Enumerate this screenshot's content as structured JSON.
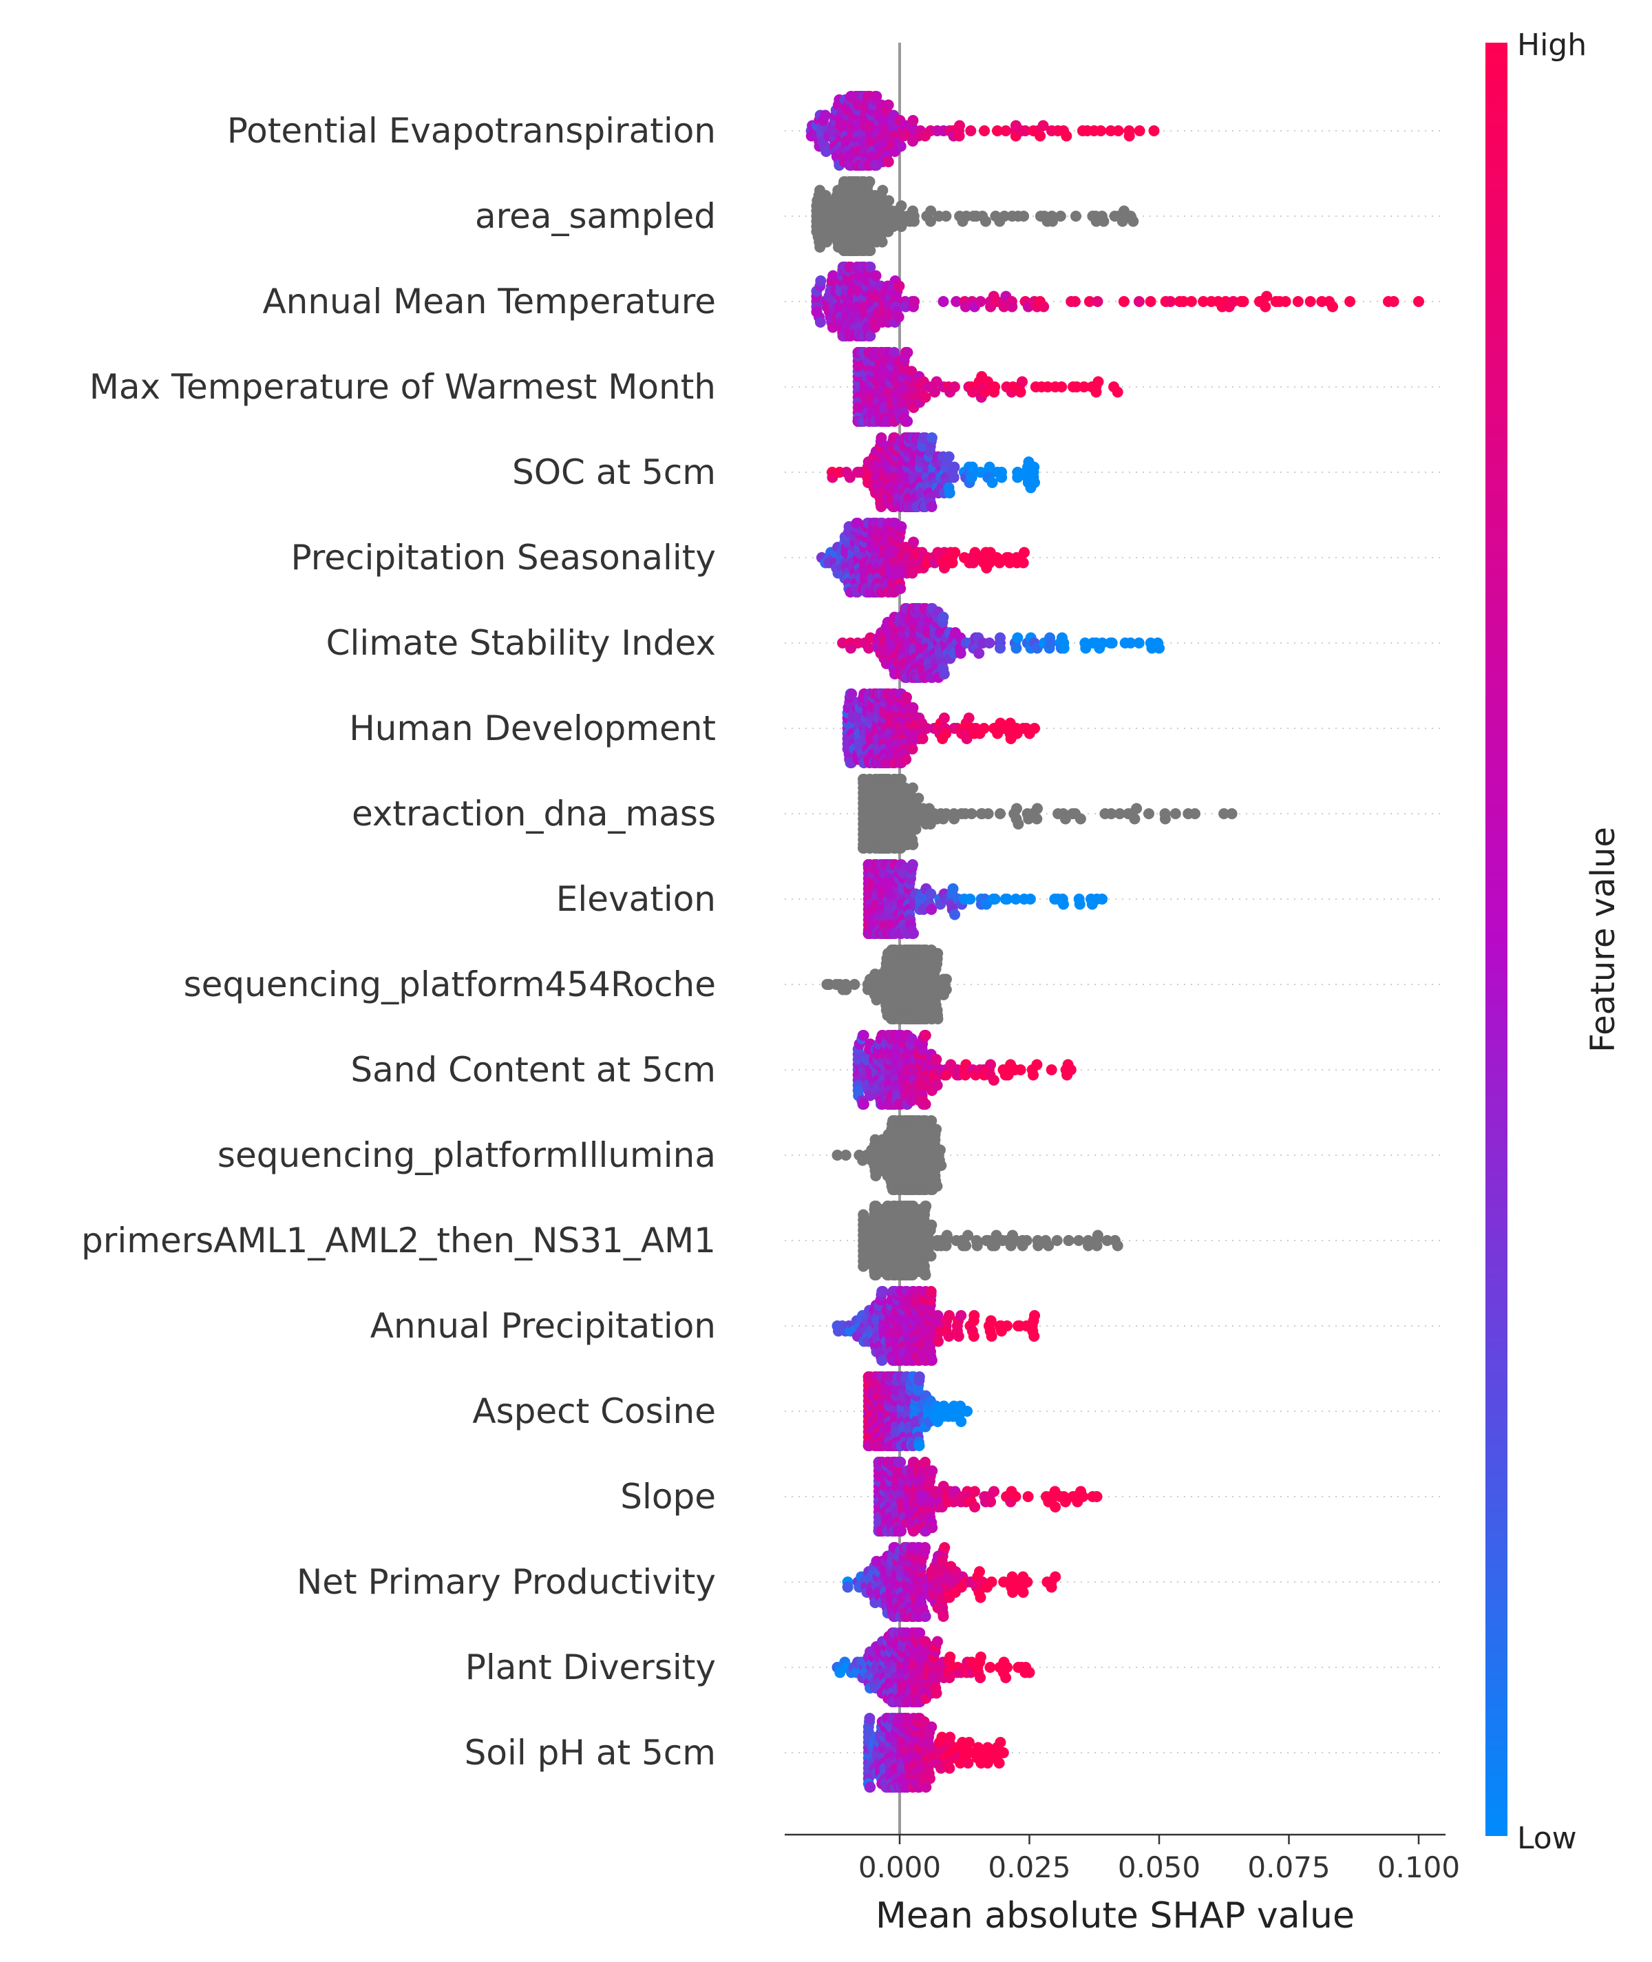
{
  "chart_data": {
    "type": "scatter",
    "subtype": "shap-beeswarm",
    "xlabel": "Mean absolute SHAP value",
    "xlim": [
      -0.022,
      0.105
    ],
    "xticks": [
      0.0,
      0.025,
      0.05,
      0.075,
      0.1
    ],
    "xtick_labels": [
      "0.000",
      "0.025",
      "0.050",
      "0.075",
      "0.100"
    ],
    "colorbar": {
      "title": "Feature value",
      "high_label": "High",
      "low_label": "Low",
      "low_color": "#008bfb",
      "high_color": "#ff0052"
    },
    "neutral_color": "#777777",
    "features": [
      {
        "name": "Potential Evapotranspiration",
        "colored": true,
        "min": -0.017,
        "max": 0.049,
        "center": -0.008,
        "spread": 0.026,
        "high_side": "right"
      },
      {
        "name": "area_sampled",
        "colored": false,
        "min": -0.016,
        "max": 0.045,
        "center": -0.009,
        "spread": 0.024,
        "high_side": "right"
      },
      {
        "name": "Annual Mean Temperature",
        "colored": true,
        "min": -0.016,
        "max": 0.1,
        "center": -0.008,
        "spread": 0.026,
        "high_side": "right"
      },
      {
        "name": "Max Temperature of Warmest Month",
        "colored": true,
        "min": -0.008,
        "max": 0.042,
        "center": -0.005,
        "spread": 0.026,
        "high_side": "right"
      },
      {
        "name": "SOC at 5cm",
        "colored": true,
        "min": -0.013,
        "max": 0.026,
        "center": 0.001,
        "spread": 0.026,
        "high_side": "left"
      },
      {
        "name": "Precipitation Seasonality",
        "colored": true,
        "min": -0.015,
        "max": 0.024,
        "center": -0.005,
        "spread": 0.026,
        "high_side": "right"
      },
      {
        "name": "Climate Stability Index",
        "colored": true,
        "min": -0.011,
        "max": 0.05,
        "center": 0.003,
        "spread": 0.026,
        "high_side": "left"
      },
      {
        "name": "Human Development",
        "colored": true,
        "min": -0.01,
        "max": 0.026,
        "center": -0.004,
        "spread": 0.026,
        "high_side": "right"
      },
      {
        "name": "extraction_dna_mass",
        "colored": false,
        "min": -0.007,
        "max": 0.064,
        "center": -0.003,
        "spread": 0.026,
        "high_side": "right"
      },
      {
        "name": "Elevation",
        "colored": true,
        "min": -0.006,
        "max": 0.039,
        "center": -0.003,
        "spread": 0.026,
        "high_side": "left"
      },
      {
        "name": "sequencing_platform454Roche",
        "colored": false,
        "min": -0.014,
        "max": 0.009,
        "center": 0.001,
        "spread": 0.02,
        "high_side": "right"
      },
      {
        "name": "Sand Content at 5cm",
        "colored": true,
        "min": -0.008,
        "max": 0.033,
        "center": -0.001,
        "spread": 0.026,
        "high_side": "right"
      },
      {
        "name": "sequencing_platformIllumina",
        "colored": false,
        "min": -0.012,
        "max": 0.008,
        "center": 0.001,
        "spread": 0.02,
        "high_side": "right"
      },
      {
        "name": "primersAML1_AML2_then_NS31_AM1",
        "colored": false,
        "min": -0.007,
        "max": 0.042,
        "center": -0.001,
        "spread": 0.024,
        "high_side": "right"
      },
      {
        "name": "Annual Precipitation",
        "colored": true,
        "min": -0.012,
        "max": 0.026,
        "center": 0.0,
        "spread": 0.026,
        "high_side": "right"
      },
      {
        "name": "Aspect Cosine",
        "colored": true,
        "min": -0.006,
        "max": 0.013,
        "center": -0.002,
        "spread": 0.026,
        "high_side": "left"
      },
      {
        "name": "Slope",
        "colored": true,
        "min": -0.004,
        "max": 0.038,
        "center": -0.001,
        "spread": 0.026,
        "high_side": "right"
      },
      {
        "name": "Net Primary Productivity",
        "colored": true,
        "min": -0.01,
        "max": 0.03,
        "center": 0.001,
        "spread": 0.026,
        "high_side": "right"
      },
      {
        "name": "Plant Diversity",
        "colored": true,
        "min": -0.012,
        "max": 0.025,
        "center": 0.0,
        "spread": 0.026,
        "high_side": "right"
      },
      {
        "name": "Soil pH at 5cm",
        "colored": true,
        "min": -0.006,
        "max": 0.02,
        "center": 0.0,
        "spread": 0.026,
        "high_side": "right"
      }
    ]
  }
}
